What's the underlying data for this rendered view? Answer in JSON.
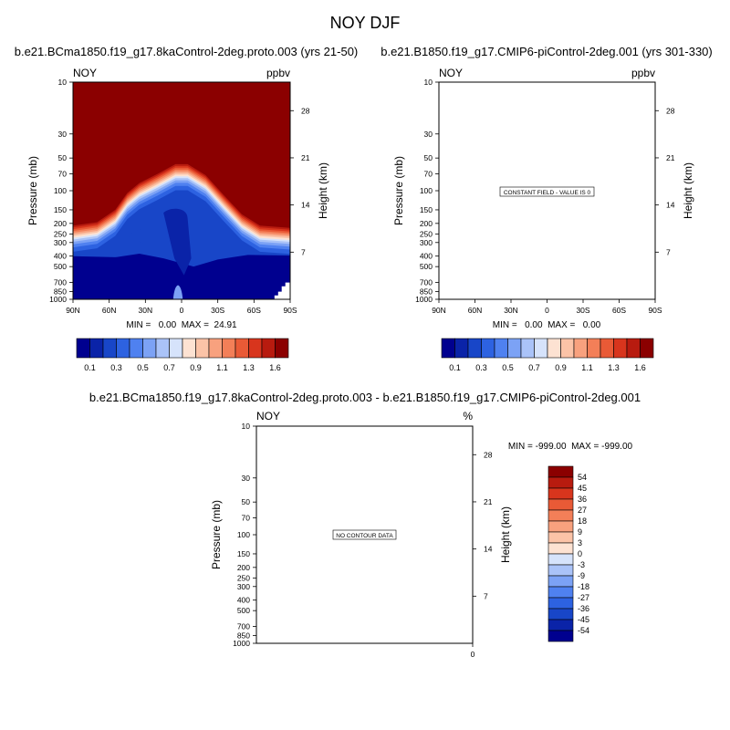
{
  "figure": {
    "title": "NOY DJF"
  },
  "colors": {
    "blue_ramp": [
      "#00008f",
      "#0a23a8",
      "#1846c8",
      "#2d62e1",
      "#4f81f0",
      "#7ca2f5",
      "#aac3f8",
      "#d6e3fb"
    ],
    "red_ramp": [
      "#fde2d2",
      "#fbc3a7",
      "#f8a17e",
      "#f37f58",
      "#e95a36",
      "#d8351d",
      "#b81b0f",
      "#8b0000"
    ],
    "diff_reds": [
      "#8b0000",
      "#b81b0f",
      "#d8351d",
      "#e95a36",
      "#f37f58",
      "#f8a17e",
      "#fbc3a7",
      "#fde2d2"
    ],
    "diff_blues": [
      "#d6e3fb",
      "#aac3f8",
      "#7ca2f5",
      "#4f81f0",
      "#2d62e1",
      "#1846c8",
      "#0a23a8",
      "#00008f"
    ]
  },
  "chart_data": [
    {
      "type": "heatmap",
      "panel": "left",
      "title": "b.e21.BCma1850.f19_g17.8kaControl-2deg.proto.003 (yrs 21-50)",
      "variable_label": "NOY",
      "units_label": "ppbv",
      "ylabel": "Pressure (mb)",
      "ylabel_right": "Height (km)",
      "x_ticks": [
        "90N",
        "60N",
        "30N",
        "0",
        "30S",
        "60S",
        "90S"
      ],
      "y_ticks": [
        "10",
        "30",
        "50",
        "70",
        "100",
        "150",
        "200",
        "250",
        "300",
        "400",
        "500",
        "700",
        "850",
        "1000"
      ],
      "y_right_ticks": [
        "28",
        "21",
        "14",
        "7"
      ],
      "stats_text": "MIN =   0.00  MAX =  24.91",
      "min": 0.0,
      "max": 24.91,
      "colorbar_labels": [
        "0.1",
        "0.3",
        "0.5",
        "0.7",
        "0.9",
        "1.1",
        "1.3",
        "1.6"
      ],
      "contour_front_pressure_mb": [
        [
          90,
          210
        ],
        [
          70,
          195
        ],
        [
          55,
          150
        ],
        [
          45,
          105
        ],
        [
          35,
          85
        ],
        [
          20,
          70
        ],
        [
          5,
          57
        ],
        [
          -5,
          57
        ],
        [
          -20,
          72
        ],
        [
          -35,
          110
        ],
        [
          -50,
          165
        ],
        [
          -65,
          210
        ],
        [
          -90,
          220
        ]
      ]
    },
    {
      "type": "heatmap",
      "panel": "right",
      "title": "b.e21.B1850.f19_g17.CMIP6-piControl-2deg.001 (yrs 301-330)",
      "variable_label": "NOY",
      "units_label": "ppbv",
      "ylabel": "Pressure (mb)",
      "ylabel_right": "Height (km)",
      "x_ticks": [
        "90N",
        "60N",
        "30N",
        "0",
        "30S",
        "60S",
        "90S"
      ],
      "y_ticks": [
        "10",
        "30",
        "50",
        "70",
        "100",
        "150",
        "200",
        "250",
        "300",
        "400",
        "500",
        "700",
        "850",
        "1000"
      ],
      "y_right_ticks": [
        "28",
        "21",
        "14",
        "7"
      ],
      "stats_text": "MIN =   0.00  MAX =   0.00",
      "min": 0.0,
      "max": 0.0,
      "annotation": "CONSTANT FIELD - VALUE IS 0",
      "colorbar_labels": [
        "0.1",
        "0.3",
        "0.5",
        "0.7",
        "0.9",
        "1.1",
        "1.3",
        "1.6"
      ]
    },
    {
      "type": "heatmap",
      "panel": "difference",
      "title": "b.e21.BCma1850.f19_g17.8kaControl-2deg.proto.003 - b.e21.B1850.f19_g17.CMIP6-piControl-2deg.001",
      "variable_label": "NOY",
      "units_label": "%",
      "ylabel": "Pressure (mb)",
      "ylabel_right": "Height (km)",
      "x_ticks": [
        "0"
      ],
      "y_ticks": [
        "10",
        "30",
        "50",
        "70",
        "100",
        "150",
        "200",
        "250",
        "300",
        "400",
        "500",
        "700",
        "850",
        "1000"
      ],
      "y_right_ticks": [
        "28",
        "21",
        "14",
        "7"
      ],
      "stats_text": "MIN = -999.00  MAX = -999.00",
      "min": -999.0,
      "max": -999.0,
      "annotation": "NO CONTOUR DATA",
      "colorbar_labels": [
        "54",
        "45",
        "36",
        "27",
        "18",
        "9",
        "3",
        "0",
        "-3",
        "-9",
        "-18",
        "-27",
        "-36",
        "-45",
        "-54"
      ]
    }
  ]
}
